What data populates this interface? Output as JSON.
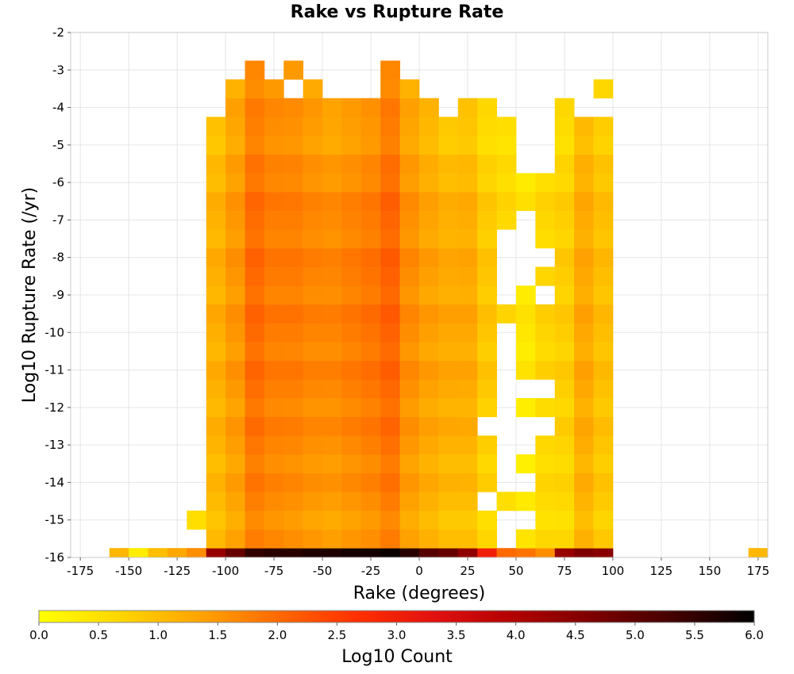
{
  "chart_data": {
    "type": "heatmap",
    "title": "Rake vs Rupture Rate",
    "xlabel": "Rake (degrees)",
    "ylabel": "Log10 Rupture Rate (/yr)",
    "xlim": [
      -180,
      180
    ],
    "ylim": [
      -16,
      -2
    ],
    "x_ticks": [
      -175,
      -150,
      -125,
      -100,
      -75,
      -50,
      -25,
      0,
      25,
      50,
      75,
      100,
      125,
      150,
      175
    ],
    "y_ticks": [
      -2,
      -3,
      -4,
      -5,
      -6,
      -7,
      -8,
      -9,
      -10,
      -11,
      -12,
      -13,
      -14,
      -15,
      -16
    ],
    "grid": true,
    "bin_width_x": 10,
    "bin_height_y": 0.5,
    "colorbar": {
      "label": "Log10 Count",
      "min": 0.0,
      "max": 6.0,
      "ticks": [
        "0.0",
        "0.5",
        "1.0",
        "1.5",
        "2.0",
        "2.5",
        "3.0",
        "3.5",
        "4.0",
        "4.5",
        "5.0",
        "5.5",
        "6.0"
      ],
      "colors": [
        "#ffff00",
        "#ffd700",
        "#ffa500",
        "#ff6a00",
        "#ff3000",
        "#e01010",
        "#b00000",
        "#7a0000",
        "#420000",
        "#000000"
      ],
      "orientation": "horizontal",
      "placement": "bottom"
    },
    "columns": [
      {
        "rake": -155,
        "top": -16,
        "bottom": -16,
        "base": 0.8,
        "center": 0.8,
        "edge": 1.1
      },
      {
        "rake": -145,
        "top": -16,
        "bottom": -16,
        "base": 0.3,
        "center": 0.3,
        "edge": 0.3
      },
      {
        "rake": -135,
        "top": -16,
        "bottom": -16,
        "base": 0.9,
        "center": 0.9,
        "edge": 1.0
      },
      {
        "rake": -125,
        "top": -16,
        "bottom": -16,
        "base": 1.2,
        "center": 1.2,
        "edge": 1.3
      },
      {
        "rake": -115,
        "top": -15,
        "bottom": -16,
        "base": 0.7,
        "center": 0.7,
        "edge": 1.6,
        "gaps": [
          -15.5
        ]
      },
      {
        "rake": -105,
        "top": -4.5,
        "bottom": -16,
        "base": 1.0,
        "center": 1.2,
        "edge": 4.3
      },
      {
        "rake": -95,
        "top": -3.5,
        "bottom": -16,
        "base": 1.3,
        "center": 1.5,
        "edge": 4.9
      },
      {
        "rake": -85,
        "top": -3,
        "bottom": -16,
        "base": 1.7,
        "center": 2.0,
        "edge": 5.5
      },
      {
        "rake": -75,
        "top": -3.5,
        "bottom": -16,
        "base": 1.6,
        "center": 1.8,
        "edge": 5.6
      },
      {
        "rake": -65,
        "top": -3,
        "bottom": -16,
        "base": 1.5,
        "center": 1.8,
        "edge": 5.6,
        "gaps": [
          -3.5
        ]
      },
      {
        "rake": -55,
        "top": -3.5,
        "bottom": -16,
        "base": 1.4,
        "center": 1.7,
        "edge": 5.7
      },
      {
        "rake": -45,
        "top": -4,
        "bottom": -16,
        "base": 1.3,
        "center": 1.7,
        "edge": 5.7
      },
      {
        "rake": -35,
        "top": -4,
        "bottom": -16,
        "base": 1.4,
        "center": 1.8,
        "edge": 5.8
      },
      {
        "rake": -25,
        "top": -4,
        "bottom": -16,
        "base": 1.5,
        "center": 1.9,
        "edge": 5.8
      },
      {
        "rake": -15,
        "top": -3,
        "bottom": -16,
        "base": 1.7,
        "center": 2.1,
        "edge": 5.9
      },
      {
        "rake": -5,
        "top": -3.5,
        "bottom": -16,
        "base": 1.3,
        "center": 1.6,
        "edge": 5.6
      },
      {
        "rake": 5,
        "top": -4,
        "bottom": -16,
        "base": 1.1,
        "center": 1.4,
        "edge": 5.1
      },
      {
        "rake": 15,
        "top": -4.5,
        "bottom": -16,
        "base": 0.9,
        "center": 1.3,
        "edge": 4.9
      },
      {
        "rake": 25,
        "top": -4,
        "bottom": -16,
        "base": 0.9,
        "center": 1.3,
        "edge": 4.4
      },
      {
        "rake": 35,
        "top": -4,
        "bottom": -16,
        "base": 0.6,
        "center": 0.9,
        "edge": 3.0,
        "gaps": [
          -12.5,
          -14.5
        ]
      },
      {
        "rake": 45,
        "top": -4.5,
        "bottom": -16,
        "base": 0.6,
        "center": 0.6,
        "edge": 2.0,
        "gaps": [
          -7.5,
          -8,
          -8.5,
          -9,
          -10,
          -10.5,
          -11,
          -11.5,
          -12,
          -12.5,
          -13,
          -13.5,
          -14,
          -15,
          -15.5
        ]
      },
      {
        "rake": 55,
        "top": -6,
        "bottom": -16,
        "base": 0.4,
        "center": 0.4,
        "edge": 1.9,
        "gaps": [
          -7,
          -7.5,
          -8,
          -8.5,
          -11.5,
          -12.5,
          -13,
          -14,
          -15
        ]
      },
      {
        "rake": 65,
        "top": -6,
        "bottom": -16,
        "base": 0.6,
        "center": 0.7,
        "edge": 1.6,
        "gaps": [
          -8,
          -9,
          -11.5,
          -12.5
        ]
      },
      {
        "rake": 75,
        "top": -4,
        "bottom": -16,
        "base": 0.6,
        "center": 0.8,
        "edge": 4.3
      },
      {
        "rake": 85,
        "top": -4.5,
        "bottom": -16,
        "base": 1.1,
        "center": 1.3,
        "edge": 4.6
      },
      {
        "rake": 95,
        "top": -3.5,
        "bottom": -16,
        "base": 0.8,
        "center": 1.0,
        "edge": 4.5,
        "gaps": [
          -4
        ]
      },
      {
        "rake": 175,
        "top": -16,
        "bottom": -16,
        "base": 1.1,
        "center": 1.1,
        "edge": 1.1
      }
    ]
  }
}
